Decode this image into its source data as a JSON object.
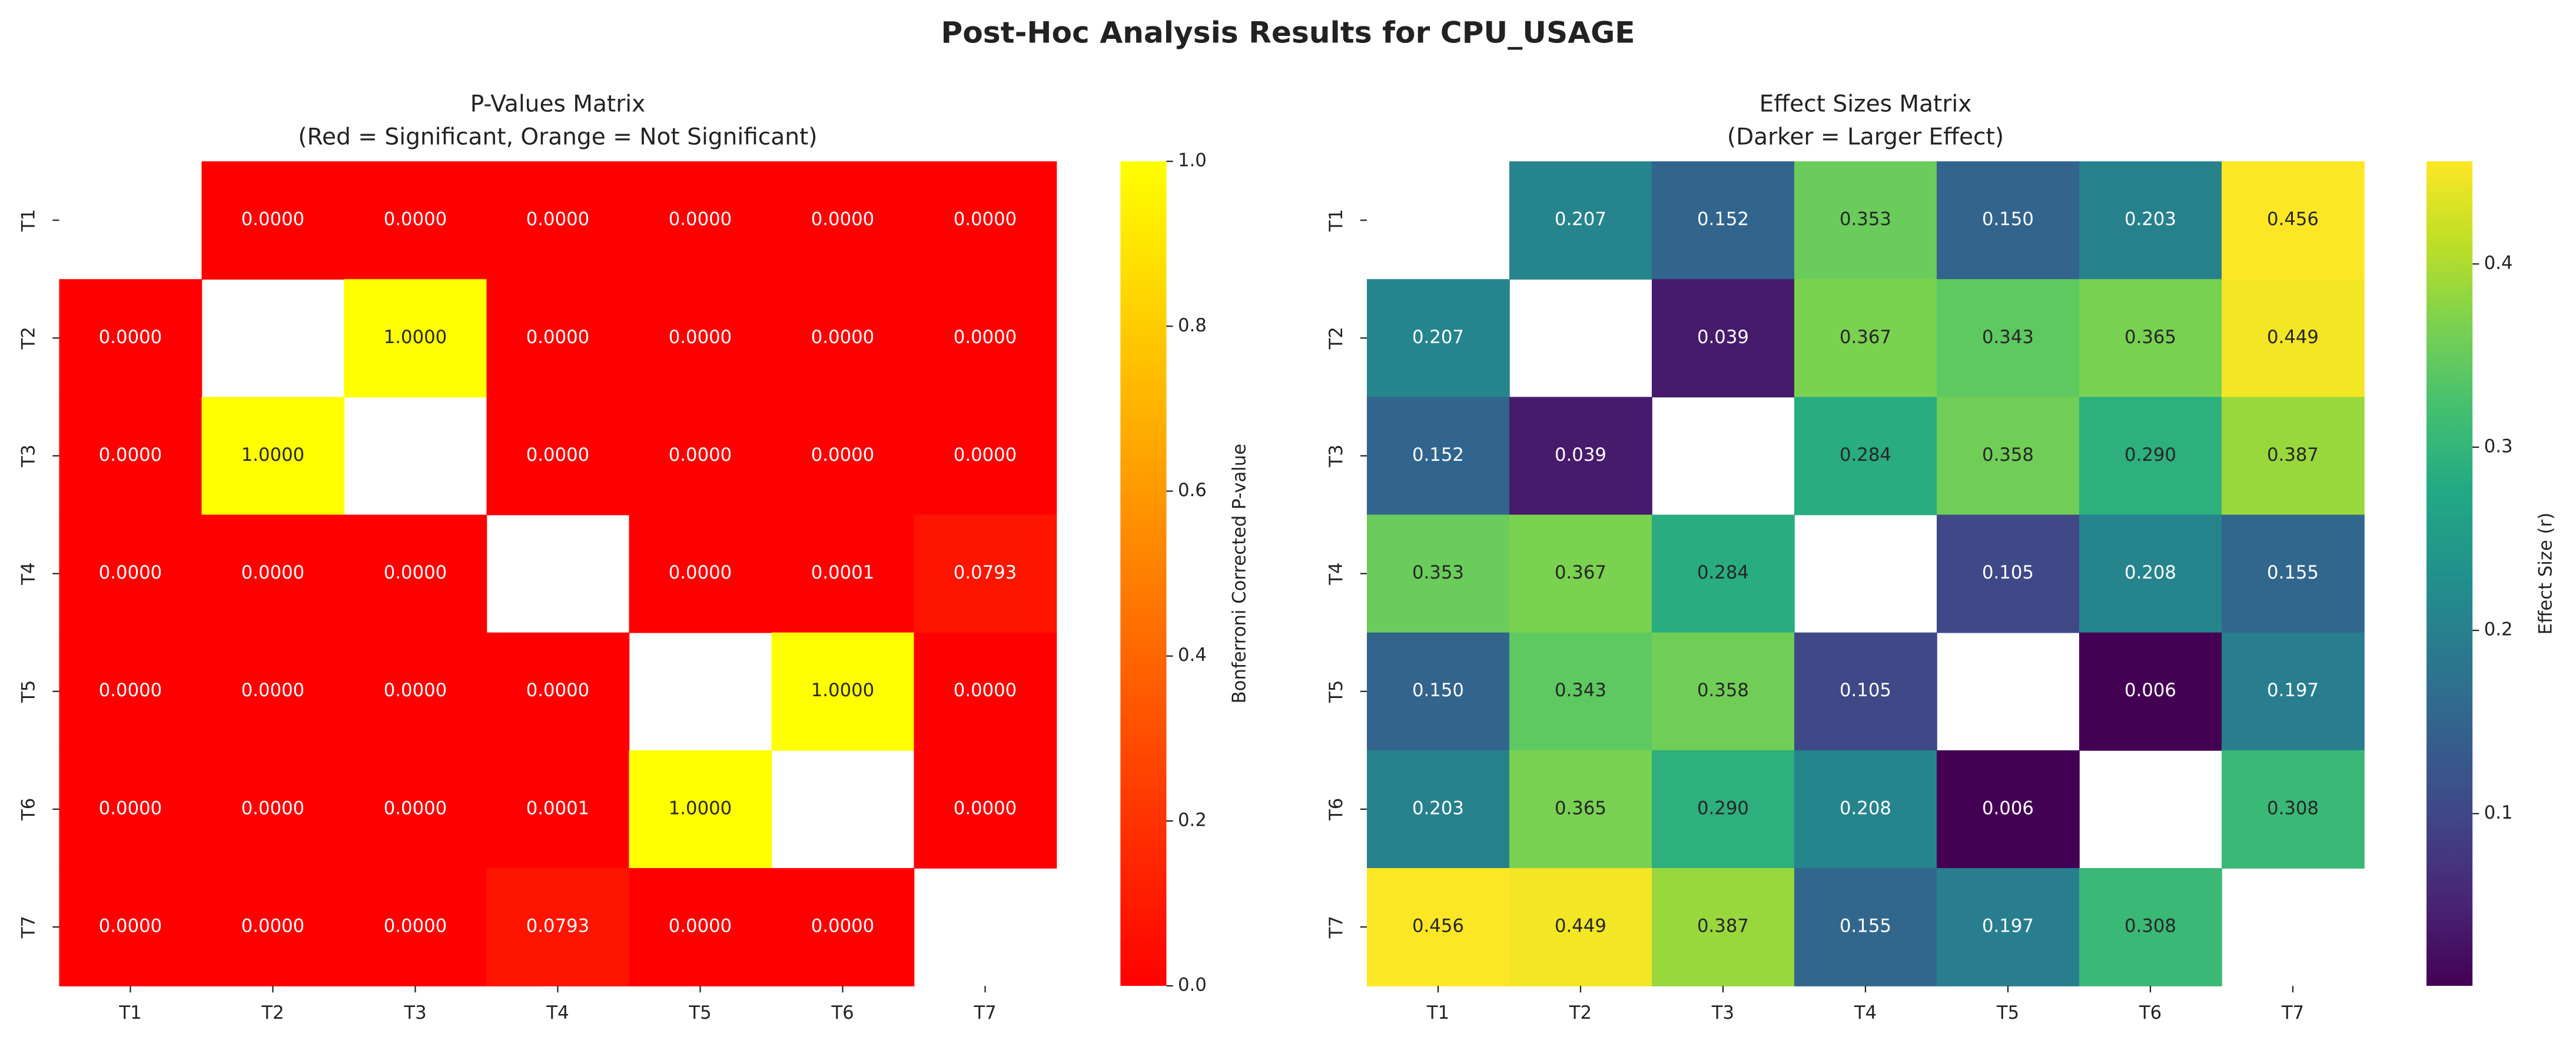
{
  "title": "Post-Hoc Analysis Results for CPU_USAGE",
  "chart_data": [
    {
      "type": "heatmap",
      "title": "P-Values Matrix",
      "subtitle": "(Red = Significant, Orange = Not Significant)",
      "x_categories": [
        "T1",
        "T2",
        "T3",
        "T4",
        "T5",
        "T6",
        "T7"
      ],
      "y_categories": [
        "T1",
        "T2",
        "T3",
        "T4",
        "T5",
        "T6",
        "T7"
      ],
      "values": [
        [
          null,
          0,
          0,
          0,
          0,
          0,
          0
        ],
        [
          0,
          null,
          1,
          0,
          0,
          0,
          0
        ],
        [
          0,
          1,
          null,
          0,
          0,
          0,
          0
        ],
        [
          0,
          0,
          0,
          null,
          0,
          0.0001,
          0.0793
        ],
        [
          0,
          0,
          0,
          0,
          null,
          1,
          0
        ],
        [
          0,
          0,
          0,
          0.0001,
          1,
          null,
          0
        ],
        [
          0,
          0,
          0,
          0.0793,
          0,
          0,
          null
        ]
      ],
      "value_labels": [
        [
          null,
          "0.0000",
          "0.0000",
          "0.0000",
          "0.0000",
          "0.0000",
          "0.0000"
        ],
        [
          "0.0000",
          null,
          "1.0000",
          "0.0000",
          "0.0000",
          "0.0000",
          "0.0000"
        ],
        [
          "0.0000",
          "1.0000",
          null,
          "0.0000",
          "0.0000",
          "0.0000",
          "0.0000"
        ],
        [
          "0.0000",
          "0.0000",
          "0.0000",
          null,
          "0.0000",
          "0.0001",
          "0.0793"
        ],
        [
          "0.0000",
          "0.0000",
          "0.0000",
          "0.0000",
          null,
          "1.0000",
          "0.0000"
        ],
        [
          "0.0000",
          "0.0000",
          "0.0000",
          "0.0001",
          "1.0000",
          null,
          "0.0000"
        ],
        [
          "0.0000",
          "0.0000",
          "0.0000",
          "0.0793",
          "0.0000",
          "0.0000",
          null
        ]
      ],
      "colormap": "autumn",
      "clim": [
        0,
        1
      ],
      "cticks": [
        {
          "value": 0,
          "label": "0.0"
        },
        {
          "value": 0.2,
          "label": "0.2"
        },
        {
          "value": 0.4,
          "label": "0.4"
        },
        {
          "value": 0.6,
          "label": "0.6"
        },
        {
          "value": 0.8,
          "label": "0.8"
        },
        {
          "value": 1,
          "label": "1.0"
        }
      ],
      "colorbar_label": "Bonferroni Corrected P-value"
    },
    {
      "type": "heatmap",
      "title": "Effect Sizes Matrix",
      "subtitle": "(Darker = Larger Effect)",
      "x_categories": [
        "T1",
        "T2",
        "T3",
        "T4",
        "T5",
        "T6",
        "T7"
      ],
      "y_categories": [
        "T1",
        "T2",
        "T3",
        "T4",
        "T5",
        "T6",
        "T7"
      ],
      "values": [
        [
          null,
          0.207,
          0.152,
          0.353,
          0.15,
          0.203,
          0.456
        ],
        [
          0.207,
          null,
          0.039,
          0.367,
          0.343,
          0.365,
          0.449
        ],
        [
          0.152,
          0.039,
          null,
          0.284,
          0.358,
          0.29,
          0.387
        ],
        [
          0.353,
          0.367,
          0.284,
          null,
          0.105,
          0.208,
          0.155
        ],
        [
          0.15,
          0.343,
          0.358,
          0.105,
          null,
          0.006,
          0.197
        ],
        [
          0.203,
          0.365,
          0.29,
          0.208,
          0.006,
          null,
          0.308
        ],
        [
          0.456,
          0.449,
          0.387,
          0.155,
          0.197,
          0.308,
          null
        ]
      ],
      "value_labels": [
        [
          null,
          "0.207",
          "0.152",
          "0.353",
          "0.150",
          "0.203",
          "0.456"
        ],
        [
          "0.207",
          null,
          "0.039",
          "0.367",
          "0.343",
          "0.365",
          "0.449"
        ],
        [
          "0.152",
          "0.039",
          null,
          "0.284",
          "0.358",
          "0.290",
          "0.387"
        ],
        [
          "0.353",
          "0.367",
          "0.284",
          null,
          "0.105",
          "0.208",
          "0.155"
        ],
        [
          "0.150",
          "0.343",
          "0.358",
          "0.105",
          null,
          "0.006",
          "0.197"
        ],
        [
          "0.203",
          "0.365",
          "0.290",
          "0.208",
          "0.006",
          null,
          "0.308"
        ],
        [
          "0.456",
          "0.449",
          "0.387",
          "0.155",
          "0.197",
          "0.308",
          null
        ]
      ],
      "colormap": "viridis",
      "clim": [
        0.006,
        0.456
      ],
      "cticks": [
        0.1,
        0.2,
        0.3,
        0.4
      ],
      "colorbar_label": "Effect Size (r)"
    }
  ]
}
